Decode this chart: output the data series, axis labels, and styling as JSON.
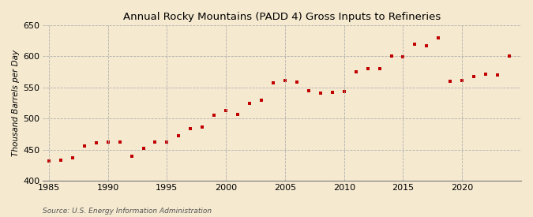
{
  "title": "Annual Rocky Mountains (PADD 4) Gross Inputs to Refineries",
  "ylabel": "Thousand Barrels per Day",
  "source": "Source: U.S. Energy Information Administration",
  "background_color": "#f5e9d0",
  "plot_bg_color": "#f5e9d0",
  "marker_color": "#c00000",
  "ylim": [
    400,
    650
  ],
  "xlim": [
    1984.5,
    2025
  ],
  "yticks": [
    400,
    450,
    500,
    550,
    600,
    650
  ],
  "xticks": [
    1985,
    1990,
    1995,
    2000,
    2005,
    2010,
    2015,
    2020
  ],
  "years": [
    1985,
    1986,
    1987,
    1988,
    1989,
    1990,
    1991,
    1992,
    1993,
    1994,
    1995,
    1996,
    1997,
    1998,
    1999,
    2000,
    2001,
    2002,
    2003,
    2004,
    2005,
    2006,
    2007,
    2008,
    2009,
    2010,
    2011,
    2012,
    2013,
    2014,
    2015,
    2016,
    2017,
    2018,
    2019,
    2020,
    2021,
    2022,
    2023,
    2024
  ],
  "values": [
    432,
    433,
    437,
    456,
    461,
    462,
    462,
    440,
    452,
    462,
    462,
    472,
    484,
    486,
    505,
    513,
    507,
    524,
    530,
    557,
    561,
    559,
    545,
    541,
    542,
    543,
    575,
    580,
    580,
    600,
    599,
    619,
    617,
    630,
    560,
    561,
    567,
    572,
    570,
    601
  ]
}
